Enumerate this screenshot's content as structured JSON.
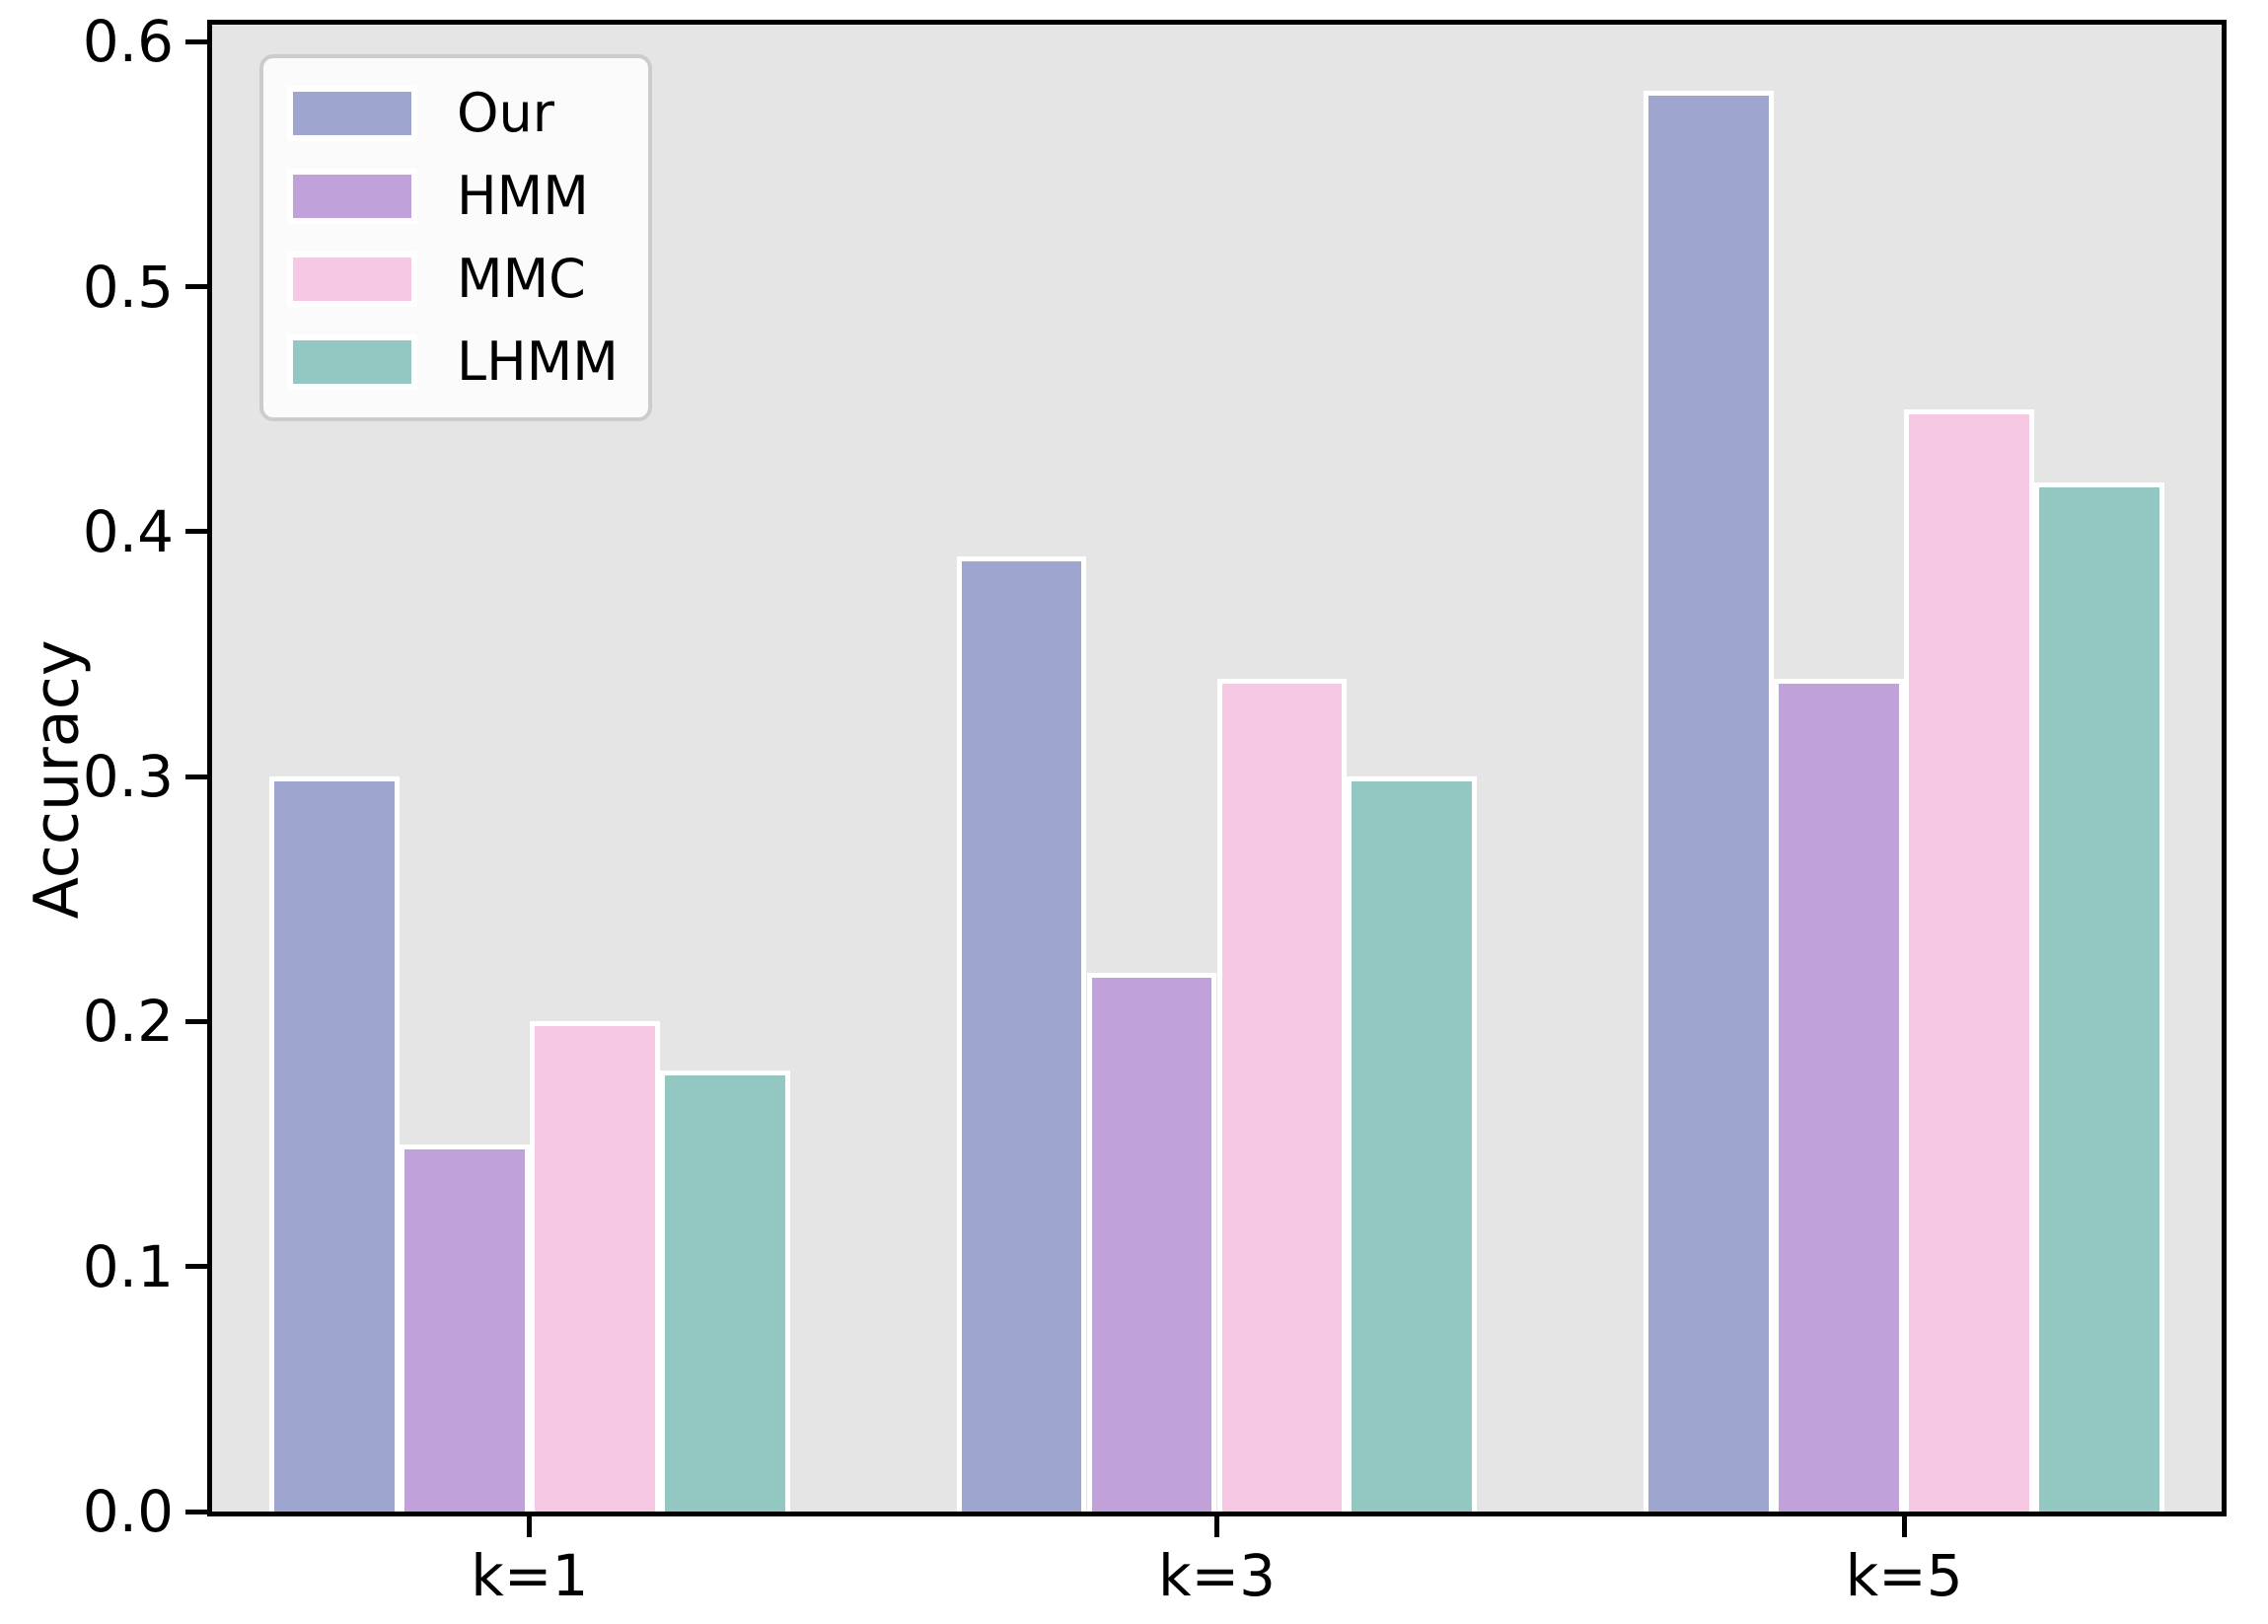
{
  "figure": {
    "background": "#ffffff"
  },
  "chart_data": {
    "type": "bar",
    "title": "",
    "xlabel": "",
    "ylabel": "Accuracy",
    "categories": [
      "k=1",
      "k=3",
      "k=5"
    ],
    "series": [
      {
        "name": "Our",
        "color": "#9ea6cf",
        "values": [
          0.3,
          0.39,
          0.58
        ]
      },
      {
        "name": "HMM",
        "color": "#c0a1d9",
        "values": [
          0.15,
          0.22,
          0.34
        ]
      },
      {
        "name": "MMC",
        "color": "#f6c8e3",
        "values": [
          0.2,
          0.34,
          0.45
        ]
      },
      {
        "name": "LHMM",
        "color": "#93c8c2",
        "values": [
          0.18,
          0.3,
          0.42
        ]
      }
    ],
    "yticks": [
      0.0,
      0.1,
      0.2,
      0.3,
      0.4,
      0.5,
      0.6
    ],
    "ytick_labels": [
      "0.0",
      "0.1",
      "0.2",
      "0.3",
      "0.4",
      "0.5",
      "0.6"
    ],
    "ylim": [
      0,
      0.607
    ],
    "grid": false,
    "legend_position": "upper left",
    "colors": {
      "plot_background": "#e5e5e5",
      "bar_edge": "#ffffff",
      "spine": "#000000",
      "legend_background": "#fbfbfb",
      "legend_border": "#cccccc",
      "text": "#000000"
    }
  }
}
